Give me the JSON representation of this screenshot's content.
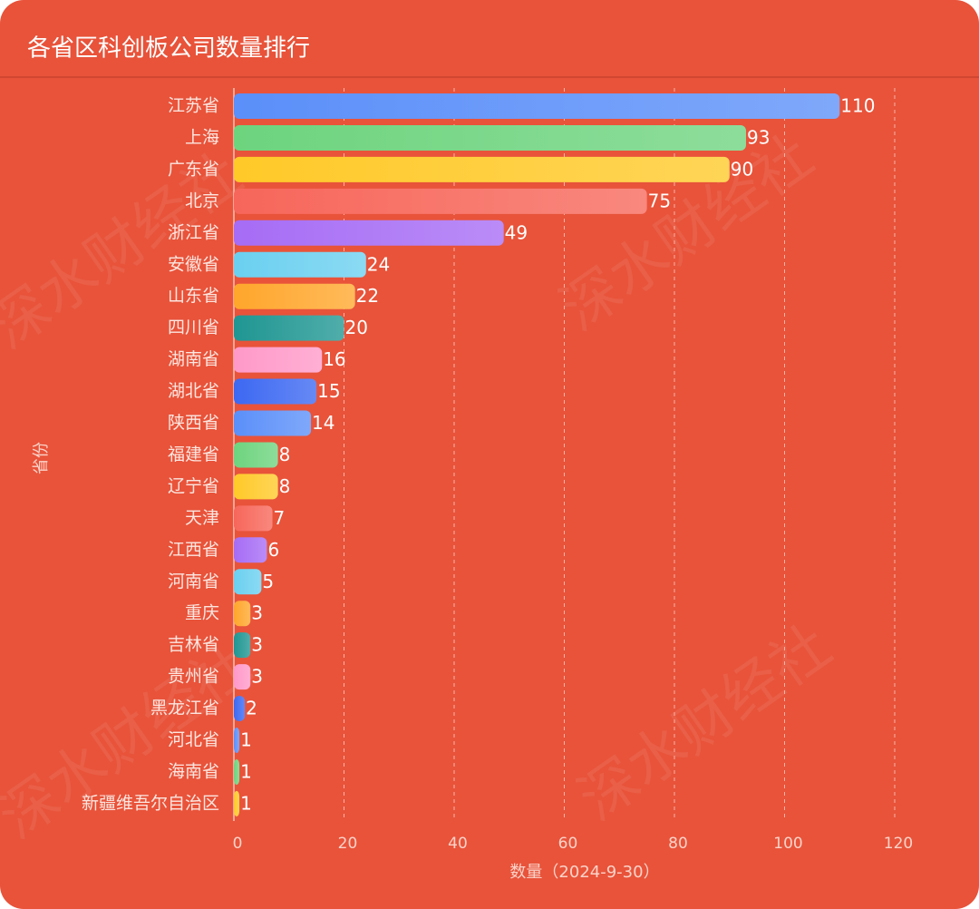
{
  "chart_data": {
    "type": "hbar",
    "title": "各省区科创板公司数量排行",
    "x_label": "数量（2024-9-30）",
    "y_label": "省份",
    "watermark": "深水财经社",
    "categories": [
      "江苏省",
      "上海",
      "广东省",
      "北京",
      "浙江省",
      "安徽省",
      "山东省",
      "四川省",
      "湖南省",
      "湖北省",
      "陕西省",
      "福建省",
      "辽宁省",
      "天津",
      "江西省",
      "河南省",
      "重庆",
      "吉林省",
      "贵州省",
      "黑龙江省",
      "河北省",
      "海南省",
      "新疆维吾尔自治区"
    ],
    "values": [
      110,
      93,
      90,
      75,
      49,
      24,
      22,
      20,
      16,
      15,
      14,
      8,
      8,
      7,
      6,
      5,
      3,
      3,
      3,
      2,
      1,
      1,
      1
    ],
    "colors": [
      "#5b8ff9",
      "#6dd47e",
      "#ffc928",
      "#f7665a",
      "#a66cf5",
      "#6ad0f0",
      "#ffa62b",
      "#1f9692",
      "#ff99c8",
      "#3c68f2"
    ],
    "xlim": [
      0,
      120
    ],
    "xticks": [
      0,
      20,
      40,
      60,
      80,
      100,
      120
    ],
    "grid": true
  }
}
